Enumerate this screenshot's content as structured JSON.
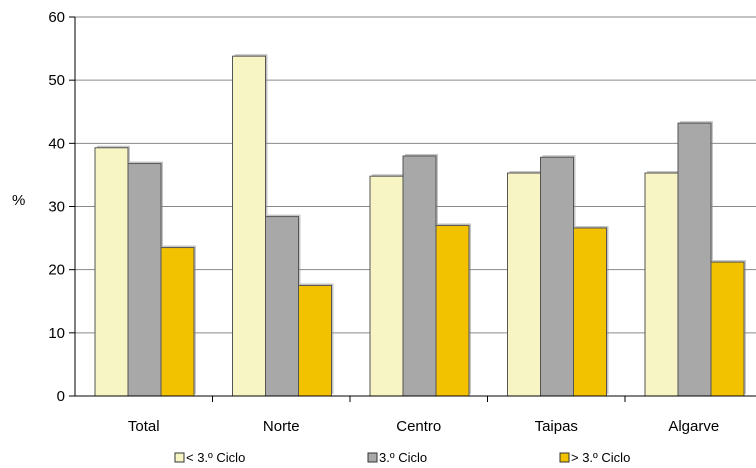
{
  "chart_data": {
    "type": "bar",
    "title": "",
    "xlabel": "",
    "ylabel": "%",
    "ylim": [
      0,
      60
    ],
    "yticks": [
      0,
      10,
      20,
      30,
      40,
      50,
      60
    ],
    "grid": "horizontal",
    "legend_position": "bottom",
    "categories": [
      "Total",
      "Norte",
      "Centro",
      "Taipas",
      "Algarve"
    ],
    "series": [
      {
        "name": "< 3.º Ciclo",
        "color": "#f7f5c4",
        "values": [
          39.3,
          53.8,
          34.8,
          35.3,
          35.3
        ]
      },
      {
        "name": "3.º Ciclo",
        "color": "#a8a8a8",
        "values": [
          36.8,
          28.4,
          38.0,
          37.8,
          43.2
        ]
      },
      {
        "name": "> 3.º Ciclo",
        "color": "#f2c200",
        "values": [
          23.5,
          17.5,
          27.0,
          26.6,
          21.2
        ]
      }
    ]
  }
}
